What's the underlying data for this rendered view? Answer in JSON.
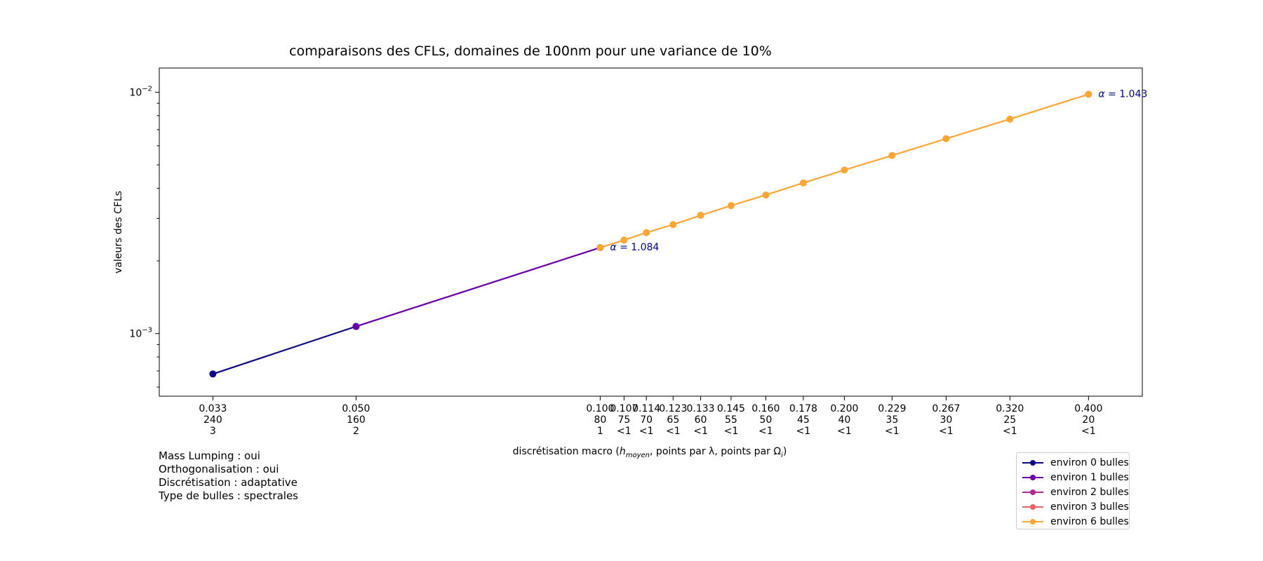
{
  "chart_data": {
    "type": "line",
    "title": "comparaisons des CFLs, domaines de 100nm pour une variance de 10%",
    "xlabel_pre": "discrétisation macro (",
    "xlabel_h": "h",
    "xlabel_sub": "moyen",
    "xlabel_post": ", points par λ, points par Ω",
    "xlabel_sub2": "i",
    "xlabel_close": ")",
    "ylabel": "valeurs des CFLs",
    "yscale": "log",
    "xscale": "log",
    "ylim": [
      0.00055,
      0.0126
    ],
    "xlim": [
      0.0286,
      0.466
    ],
    "yticks": [
      {
        "value": 0.01,
        "base": "10",
        "exp": "−2"
      },
      {
        "value": 0.001,
        "base": "10",
        "exp": "−3"
      }
    ],
    "x": [
      0.0333,
      0.05,
      0.1,
      0.107,
      0.114,
      0.123,
      0.133,
      0.145,
      0.16,
      0.178,
      0.2,
      0.229,
      0.267,
      0.32,
      0.4
    ],
    "xtick_labels": [
      [
        "0.033",
        "240",
        "3"
      ],
      [
        "0.050",
        "160",
        "2"
      ],
      [
        "0.100",
        "80",
        "1"
      ],
      [
        "0.107",
        "75",
        "<1"
      ],
      [
        "0.114",
        "70",
        "<1"
      ],
      [
        "0.123",
        "65",
        "<1"
      ],
      [
        "0.133",
        "60",
        "<1"
      ],
      [
        "0.145",
        "55",
        "<1"
      ],
      [
        "0.160",
        "50",
        "<1"
      ],
      [
        "0.178",
        "45",
        "<1"
      ],
      [
        "0.200",
        "40",
        "<1"
      ],
      [
        "0.229",
        "35",
        "<1"
      ],
      [
        "0.267",
        "30",
        "<1"
      ],
      [
        "0.320",
        "25",
        "<1"
      ],
      [
        "0.400",
        "20",
        "<1"
      ]
    ],
    "series": [
      {
        "name": "environ 0 bulles",
        "color": "#0d0887",
        "x": [
          0.0333,
          0.05
        ],
        "values": [
          0.00068,
          0.00107
        ]
      },
      {
        "name": "environ 1 bulles",
        "color": "#6a00a8",
        "x": [
          0.05,
          0.1
        ],
        "values": [
          0.00107,
          0.00227
        ]
      },
      {
        "name": "environ 2 bulles",
        "color": "#b12a90",
        "x": [],
        "values": []
      },
      {
        "name": "environ 3 bulles",
        "color": "#e16462",
        "x": [],
        "values": []
      },
      {
        "name": "environ 6 bulles",
        "color": "#fca636",
        "x": [
          0.1,
          0.107,
          0.114,
          0.123,
          0.133,
          0.145,
          0.16,
          0.178,
          0.2,
          0.229,
          0.267,
          0.32,
          0.4
        ],
        "values": [
          0.00227,
          0.00244,
          0.00262,
          0.00283,
          0.00309,
          0.00339,
          0.00375,
          0.00421,
          0.00476,
          0.00547,
          0.00642,
          0.00774,
          0.00981
        ]
      }
    ],
    "annotations": [
      {
        "greek": "α",
        "text": " = 1.084",
        "x": 0.1,
        "y": 0.00227,
        "color": "#00008b"
      },
      {
        "greek": "α",
        "text": " = 1.043",
        "x": 0.4,
        "y": 0.00981,
        "color": "#00008b"
      }
    ],
    "legend_position": "lower-right",
    "grid": false
  },
  "info": [
    "Mass Lumping : oui",
    "Orthogonalisation : oui",
    "Discrétisation : adaptative",
    "Type de bulles : spectrales"
  ]
}
